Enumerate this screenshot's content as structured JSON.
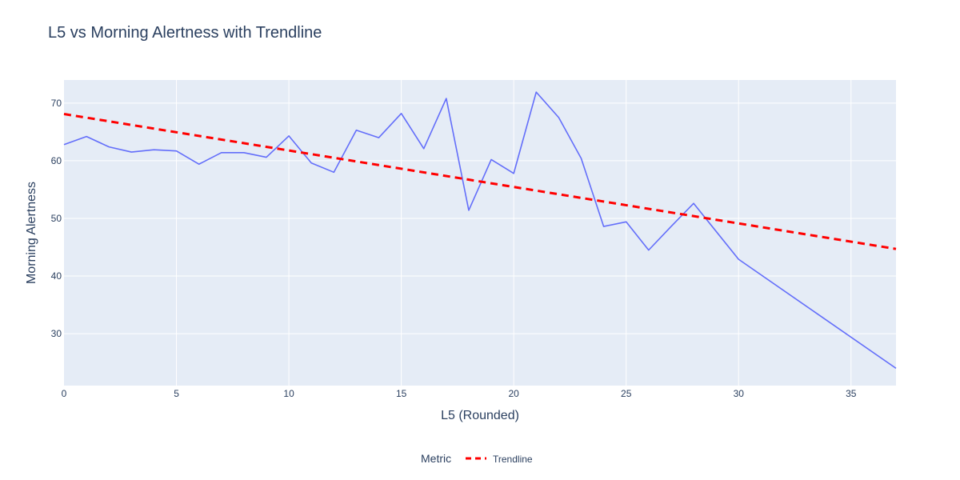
{
  "chart_data": {
    "type": "line",
    "title": "L5 vs Morning Alertness with Trendline",
    "xlabel": "L5 (Rounded)",
    "ylabel": "Morning Alertness",
    "xlim": [
      0,
      37
    ],
    "ylim": [
      21,
      74
    ],
    "x_ticks": [
      0,
      5,
      10,
      15,
      20,
      25,
      30,
      35
    ],
    "y_ticks": [
      30,
      40,
      50,
      60,
      70
    ],
    "grid": true,
    "legend": {
      "title": "Metric",
      "placement": "bottom-center",
      "entries": [
        "Trendline"
      ]
    },
    "series": [
      {
        "color": "#636efa",
        "style": "solid",
        "x": [
          0,
          1,
          2,
          3,
          4,
          5,
          6,
          7,
          8,
          9,
          10,
          11,
          12,
          13,
          14,
          15,
          16,
          17,
          18,
          19,
          20,
          21,
          22,
          23,
          24,
          25,
          26,
          27,
          28,
          30,
          37
        ],
        "y": [
          62.8,
          64.2,
          62.4,
          61.5,
          61.9,
          61.7,
          59.4,
          61.4,
          61.4,
          60.6,
          64.3,
          59.6,
          58.0,
          65.3,
          64.0,
          68.2,
          62.1,
          70.8,
          51.4,
          60.2,
          57.8,
          71.9,
          67.5,
          60.4,
          48.6,
          49.4,
          44.5,
          48.6,
          52.6,
          42.9,
          24.0
        ]
      },
      {
        "name": "Trendline",
        "color": "#ff0000",
        "style": "dash",
        "x": [
          0,
          37
        ],
        "y": [
          68.1,
          44.7
        ]
      }
    ]
  }
}
